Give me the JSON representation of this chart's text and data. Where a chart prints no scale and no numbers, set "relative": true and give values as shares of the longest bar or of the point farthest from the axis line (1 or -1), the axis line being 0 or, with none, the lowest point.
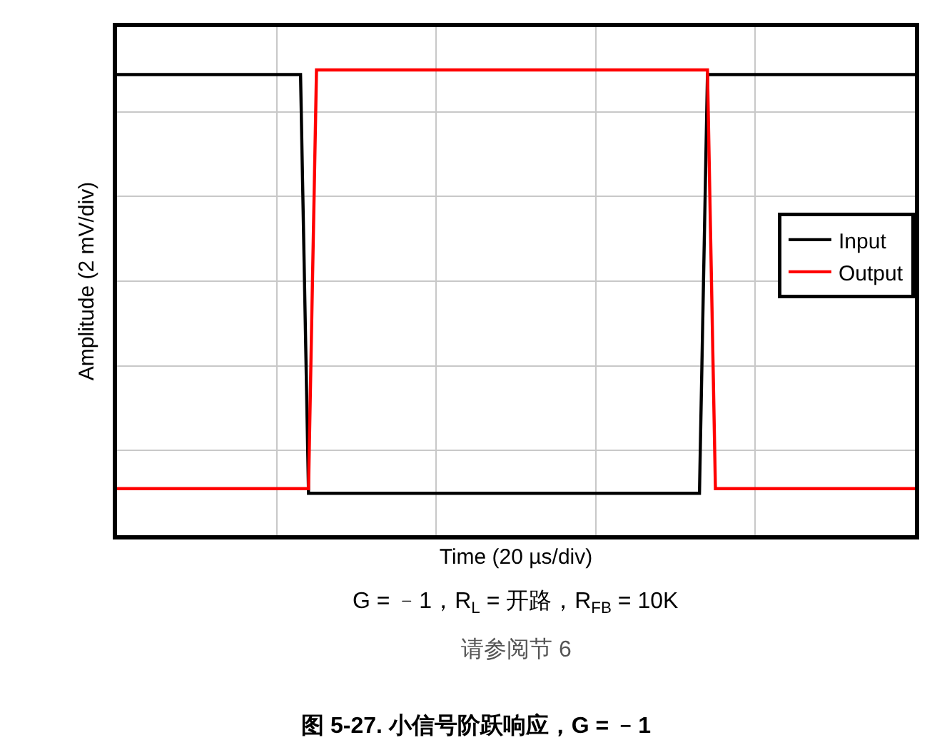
{
  "chart_data": {
    "type": "line",
    "title": "图 5-27. 小信号阶跃响应，G = ﹣1",
    "xlabel": "Time (20 µs/div)",
    "ylabel": "Amplitude (2 mV/div)",
    "annotations": [
      "G = ﹣1，R$_{L}$ = 开路，R$_{FB}$ = 10K",
      "请参阅节 6"
    ],
    "relative": true,
    "grid": true,
    "legend": "right",
    "tick_labels": false,
    "categories": [
      null,
      null,
      null,
      null,
      null,
      null,
      null,
      null,
      null,
      null,
      null,
      null,
      null,
      null,
      null,
      null,
      null,
      null,
      null,
      null,
      null,
      null,
      null,
      null,
      null,
      null,
      null,
      null,
      null,
      null,
      null,
      null,
      null,
      null,
      null,
      null,
      null,
      null,
      null,
      null,
      null,
      null,
      null,
      null,
      null,
      null,
      null,
      null,
      null,
      null,
      null,
      null,
      null,
      null,
      null,
      null,
      null,
      null,
      null,
      null,
      null,
      null,
      null,
      null,
      null,
      null,
      null,
      null,
      null,
      null,
      null,
      null,
      null,
      null,
      null,
      null,
      null,
      null,
      null,
      null,
      null,
      null,
      null,
      null,
      null,
      null,
      null,
      null,
      null,
      null,
      null,
      null,
      null,
      null,
      null,
      null,
      null,
      null,
      null,
      null,
      null
    ],
    "series": [
      {
        "name": "Input",
        "color": "#000000",
        "values": [
          0.99,
          0.99,
          0.99,
          0.99,
          0.99,
          0.99,
          0.99,
          0.99,
          0.99,
          0.99,
          0.99,
          0.99,
          0.99,
          0.99,
          0.99,
          0.99,
          0.99,
          0.99,
          0.99,
          0.99,
          0.99,
          0.99,
          0.99,
          0.99,
          0.09,
          0.09,
          0.09,
          0.09,
          0.09,
          0.09,
          0.09,
          0.09,
          0.09,
          0.09,
          0.09,
          0.09,
          0.09,
          0.09,
          0.09,
          0.09,
          0.09,
          0.09,
          0.09,
          0.09,
          0.09,
          0.09,
          0.09,
          0.09,
          0.09,
          0.09,
          0.09,
          0.09,
          0.09,
          0.09,
          0.09,
          0.09,
          0.09,
          0.09,
          0.09,
          0.09,
          0.09,
          0.09,
          0.09,
          0.09,
          0.09,
          0.09,
          0.09,
          0.09,
          0.09,
          0.09,
          0.09,
          0.09,
          0.09,
          0.09,
          0.99,
          0.99,
          0.99,
          0.99,
          0.99,
          0.99,
          0.99,
          0.99,
          0.99,
          0.99,
          0.99,
          0.99,
          0.99,
          0.99,
          0.99,
          0.99,
          0.99,
          0.99,
          0.99,
          0.99,
          0.99,
          0.99,
          0.99,
          0.99,
          0.99,
          0.99,
          0.99
        ]
      },
      {
        "name": "Output",
        "color": "#ff0000",
        "values": [
          0.1,
          0.1,
          0.1,
          0.1,
          0.1,
          0.1,
          0.1,
          0.1,
          0.1,
          0.1,
          0.1,
          0.1,
          0.1,
          0.1,
          0.1,
          0.1,
          0.1,
          0.1,
          0.1,
          0.1,
          0.1,
          0.1,
          0.1,
          0.1,
          0.1,
          1,
          1,
          1,
          1,
          1,
          1,
          1,
          1,
          1,
          1,
          1,
          1,
          1,
          1,
          1,
          1,
          1,
          1,
          1,
          1,
          1,
          1,
          1,
          1,
          1,
          1,
          1,
          1,
          1,
          1,
          1,
          1,
          1,
          1,
          1,
          1,
          1,
          1,
          1,
          1,
          1,
          1,
          1,
          1,
          1,
          1,
          1,
          1,
          1,
          1,
          0.1,
          0.1,
          0.1,
          0.1,
          0.1,
          0.1,
          0.1,
          0.1,
          0.1,
          0.1,
          0.1,
          0.1,
          0.1,
          0.1,
          0.1,
          0.1,
          0.1,
          0.1,
          0.1,
          0.1,
          0.1,
          0.1,
          0.1,
          0.1,
          0.1,
          0.1
        ]
      }
    ]
  }
}
